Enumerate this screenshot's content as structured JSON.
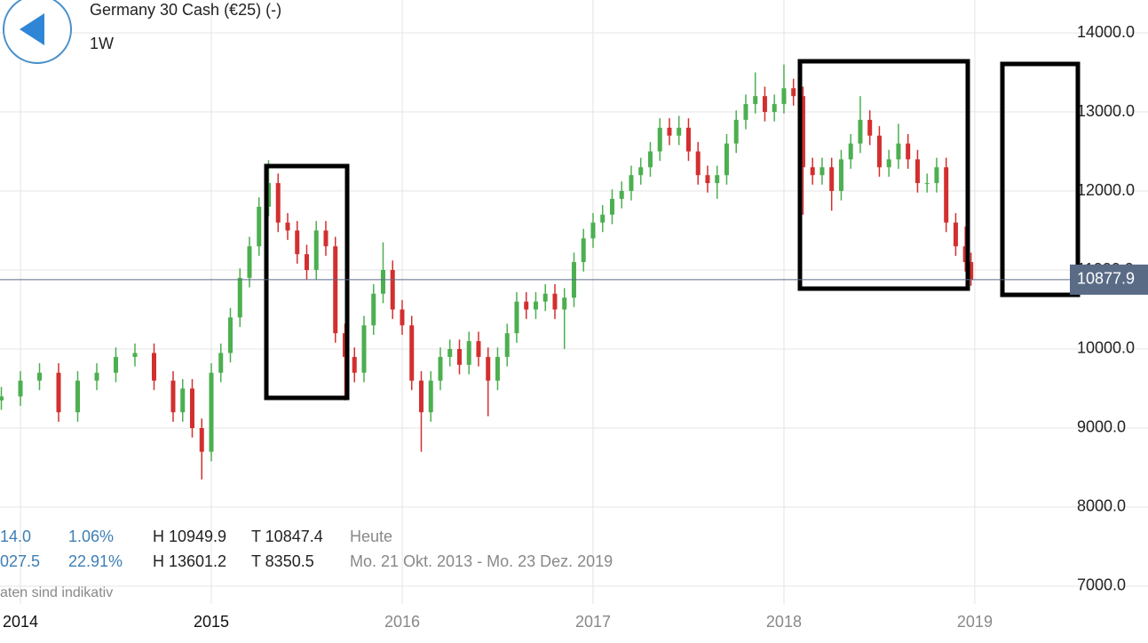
{
  "chart_data": {
    "type": "candlestick",
    "title": "Germany 30 Cash (€25) (-)",
    "interval": "1W",
    "x": [
      2013.9,
      2014.0,
      2014.1,
      2014.2,
      2014.3,
      2014.4,
      2014.5,
      2014.6,
      2014.7,
      2014.8,
      2014.85,
      2014.9,
      2014.95,
      2015.0,
      2015.05,
      2015.1,
      2015.15,
      2015.2,
      2015.25,
      2015.3,
      2015.35,
      2015.4,
      2015.45,
      2015.5,
      2015.55,
      2015.6,
      2015.65,
      2015.7,
      2015.75,
      2015.8,
      2015.85,
      2015.9,
      2015.95,
      2016.0,
      2016.05,
      2016.1,
      2016.15,
      2016.2,
      2016.25,
      2016.3,
      2016.35,
      2016.4,
      2016.45,
      2016.5,
      2016.55,
      2016.6,
      2016.65,
      2016.7,
      2016.75,
      2016.8,
      2016.85,
      2016.9,
      2016.95,
      2017.0,
      2017.05,
      2017.1,
      2017.15,
      2017.2,
      2017.25,
      2017.3,
      2017.35,
      2017.4,
      2017.45,
      2017.5,
      2017.55,
      2017.6,
      2017.65,
      2017.7,
      2017.75,
      2017.8,
      2017.85,
      2017.9,
      2017.95,
      2018.0,
      2018.05,
      2018.1,
      2018.15,
      2018.2,
      2018.25,
      2018.3,
      2018.35,
      2018.4,
      2018.45,
      2018.5,
      2018.55,
      2018.6,
      2018.65,
      2018.7,
      2018.75,
      2018.8,
      2018.85,
      2018.9,
      2018.95,
      2018.98
    ],
    "open": [
      9350,
      9400,
      9600,
      9700,
      9200,
      9600,
      9700,
      9900,
      9950,
      9600,
      9200,
      9500,
      9000,
      8700,
      9700,
      9950,
      10400,
      10900,
      11300,
      11800,
      12100,
      11600,
      11500,
      11200,
      11000,
      11500,
      11300,
      10200,
      9900,
      9700,
      10300,
      10700,
      11000,
      10500,
      10300,
      9600,
      9200,
      9600,
      9900,
      10000,
      9800,
      10100,
      9900,
      9600,
      9900,
      10200,
      10600,
      10500,
      10600,
      10700,
      10500,
      10650,
      11100,
      11400,
      11600,
      11700,
      11900,
      12000,
      12200,
      12300,
      12500,
      12800,
      12700,
      12800,
      12500,
      12200,
      12100,
      12200,
      12600,
      12900,
      13100,
      13200,
      13000,
      13100,
      13300,
      13200,
      12300,
      12200,
      12300,
      12000,
      12400,
      12600,
      12900,
      12700,
      12300,
      12400,
      12600,
      12400,
      12100,
      12100,
      12300,
      11600,
      11300,
      11100
    ],
    "high": [
      9520,
      9720,
      9820,
      9820,
      9720,
      9820,
      10020,
      10070,
      10070,
      9720,
      9620,
      9620,
      9120,
      9820,
      10070,
      10520,
      11020,
      11420,
      11920,
      12390,
      12220,
      11720,
      11620,
      11320,
      11620,
      11620,
      11420,
      10320,
      10020,
      10420,
      10820,
      11350,
      11120,
      10620,
      10420,
      9720,
      9720,
      10020,
      10120,
      10120,
      10220,
      10220,
      10020,
      10020,
      10320,
      10720,
      10720,
      10720,
      10820,
      10820,
      10770,
      11220,
      11520,
      11720,
      11820,
      12020,
      12120,
      12320,
      12420,
      12620,
      12920,
      12920,
      12950,
      12920,
      12620,
      12320,
      12320,
      12720,
      13020,
      13220,
      13500,
      13320,
      13220,
      13600,
      13420,
      13320,
      12420,
      12420,
      12420,
      12520,
      12720,
      13200,
      13020,
      12820,
      12520,
      12850,
      12720,
      12520,
      12220,
      12420,
      12420,
      11720,
      11550,
      11220
    ],
    "low": [
      9230,
      9280,
      9480,
      9080,
      9080,
      9480,
      9580,
      9780,
      9480,
      9080,
      9080,
      8880,
      8350,
      8580,
      9580,
      9830,
      10280,
      10780,
      11180,
      11680,
      11480,
      11380,
      11080,
      10880,
      10880,
      11180,
      10080,
      9350,
      9580,
      9580,
      10180,
      10580,
      10380,
      10180,
      9480,
      8700,
      9080,
      9480,
      9780,
      9680,
      9680,
      9780,
      9150,
      9480,
      9780,
      10080,
      10380,
      10380,
      10480,
      10380,
      10000,
      10530,
      10980,
      11280,
      11480,
      11580,
      11780,
      11880,
      12080,
      12180,
      12380,
      12580,
      12580,
      12380,
      12080,
      11980,
      11900,
      12080,
      12480,
      12780,
      12980,
      12880,
      12880,
      12980,
      13080,
      11700,
      12080,
      12080,
      11750,
      11880,
      12280,
      12480,
      12580,
      12180,
      12180,
      12280,
      12280,
      11980,
      11980,
      11980,
      11480,
      11180,
      10980,
      10800
    ],
    "close": [
      9400,
      9600,
      9700,
      9200,
      9600,
      9700,
      9900,
      9950,
      9600,
      9200,
      9500,
      9000,
      8700,
      9700,
      9950,
      10400,
      10900,
      11300,
      11800,
      12100,
      11600,
      11500,
      11200,
      11000,
      11500,
      11300,
      10200,
      9900,
      9700,
      10300,
      10700,
      11000,
      10500,
      10300,
      9600,
      9200,
      9600,
      9900,
      10000,
      9800,
      10100,
      9900,
      9600,
      9900,
      10200,
      10600,
      10500,
      10600,
      10700,
      10500,
      10650,
      11100,
      11400,
      11600,
      11700,
      11900,
      12000,
      12200,
      12300,
      12500,
      12800,
      12700,
      12800,
      12500,
      12200,
      12100,
      12200,
      12600,
      12900,
      13100,
      13200,
      13000,
      13100,
      13300,
      13200,
      12300,
      12200,
      12300,
      12000,
      12400,
      12600,
      12900,
      12700,
      12300,
      12400,
      12600,
      12400,
      12100,
      12100,
      12300,
      11600,
      11300,
      11100,
      10880
    ],
    "up_color": "#4caf50",
    "down_color": "#d32f2f",
    "xlim": [
      2013.893,
      2019.498
    ],
    "xticks": [
      2014,
      2015,
      2016,
      2017,
      2018,
      2019
    ],
    "ylim": [
      6775,
      14416
    ],
    "yticks": [
      {
        "value": 7000,
        "label": "7000.0"
      },
      {
        "value": 8000,
        "label": "8000.0"
      },
      {
        "value": 9000,
        "label": "9000.0"
      },
      {
        "value": 10000,
        "label": "10000.0"
      },
      {
        "value": 11000,
        "label": "11000.0"
      },
      {
        "value": 12000,
        "label": "12000.0"
      },
      {
        "value": 13000,
        "label": "13000.0"
      },
      {
        "value": 14000,
        "label": "14000.0"
      }
    ],
    "grid": true,
    "last_price": 10877.9,
    "last_price_color": "#5a6b86",
    "stats": [
      [
        "14.0",
        "1.06%",
        "H 10949.9",
        "T 10847.4",
        "Heute"
      ],
      [
        "027.5",
        "22.91%",
        "H 13601.2",
        "T 8350.5",
        "Mo. 21 Okt. 2013 - Mo. 23 Dez. 2019"
      ]
    ],
    "disclaimer": "aten sind indikativ"
  }
}
